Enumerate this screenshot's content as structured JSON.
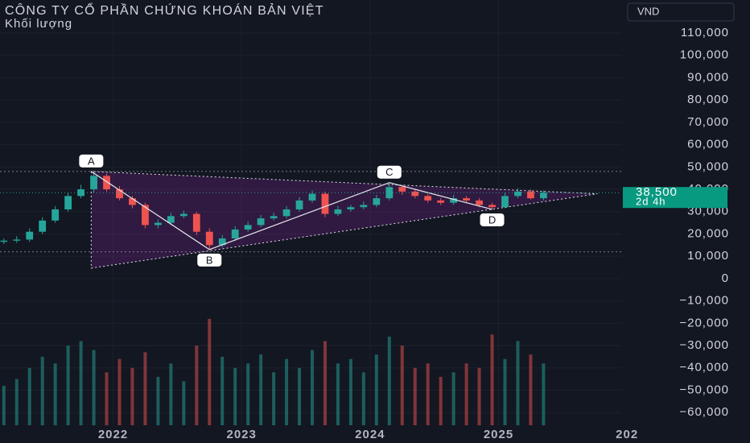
{
  "chart_data": {
    "type": "candlestick",
    "title": "CÔNG TY CỔ PHẦN CHỨNG KHOÁN BẢN VIỆT",
    "subtitle": "Khối lượng",
    "currency": "VND",
    "up_color": "#26a69a",
    "down_color": "#ef5350",
    "grid": true,
    "xlim": [
      2021.12,
      2025.955
    ],
    "xticks": [
      2022,
      2023,
      2024,
      2025,
      {
        "value": 2026,
        "label": "202"
      }
    ],
    "ylim": [
      -65700,
      124800
    ],
    "yticks": [
      {
        "value": 110000,
        "label": "110,000"
      },
      {
        "value": 100000,
        "label": "100,000"
      },
      {
        "value": 90000,
        "label": "90,000"
      },
      {
        "value": 80000,
        "label": "80,000"
      },
      {
        "value": 70000,
        "label": "70,000"
      },
      {
        "value": 60000,
        "label": "60,000"
      },
      {
        "value": 50000,
        "label": "50,000"
      },
      {
        "value": 40000,
        "label": "40,000"
      },
      {
        "value": 30000,
        "label": "30,000"
      },
      {
        "value": 20000,
        "label": "20,000"
      },
      {
        "value": 10000,
        "label": "10,000"
      },
      0,
      {
        "value": -10000,
        "label": "−10,000"
      },
      {
        "value": -20000,
        "label": "−20,000"
      },
      {
        "value": -30000,
        "label": "−30,000"
      },
      {
        "value": -40000,
        "label": "−40,000"
      },
      {
        "value": -50000,
        "label": "−50,000"
      },
      {
        "value": -60000,
        "label": "−60,000"
      }
    ],
    "x": [
      2021.15,
      2021.25,
      2021.35,
      2021.45,
      2021.55,
      2021.65,
      2021.75,
      2021.85,
      2021.95,
      2022.05,
      2022.15,
      2022.25,
      2022.35,
      2022.45,
      2022.55,
      2022.65,
      2022.75,
      2022.85,
      2022.95,
      2023.05,
      2023.15,
      2023.25,
      2023.35,
      2023.45,
      2023.55,
      2023.65,
      2023.75,
      2023.85,
      2023.95,
      2024.05,
      2024.15,
      2024.25,
      2024.35,
      2024.45,
      2024.55,
      2024.65,
      2024.75,
      2024.85,
      2024.95,
      2025.05,
      2025.15,
      2025.25,
      2025.35
    ],
    "open": [
      16500,
      17000,
      17500,
      21000,
      26000,
      31000,
      37000,
      40000,
      46000,
      40000,
      36000,
      33000,
      24000,
      25000,
      28000,
      29000,
      21000,
      15000,
      18000,
      22000,
      24000,
      27000,
      28000,
      31000,
      35000,
      38000,
      29000,
      31000,
      32000,
      33000,
      36000,
      41000,
      39000,
      37000,
      35000,
      34000,
      36000,
      35000,
      33000,
      32000,
      37000,
      39000,
      36000
    ],
    "high": [
      18000,
      19000,
      22500,
      27500,
      32500,
      38500,
      42000,
      48000,
      47000,
      41500,
      37000,
      34000,
      26500,
      29500,
      30500,
      30000,
      22500,
      19500,
      23500,
      25500,
      28500,
      29500,
      32500,
      36500,
      39500,
      39000,
      32500,
      33000,
      34500,
      37500,
      43000,
      42000,
      40000,
      38000,
      36000,
      37500,
      37000,
      36000,
      34000,
      38500,
      40500,
      40000,
      39500
    ],
    "low": [
      15500,
      16000,
      16500,
      20000,
      25000,
      30000,
      36000,
      38500,
      39000,
      35000,
      31500,
      22500,
      22500,
      24000,
      27000,
      19500,
      13000,
      14000,
      17000,
      21000,
      23000,
      26000,
      27000,
      30000,
      34000,
      27500,
      28000,
      30000,
      31000,
      32000,
      35000,
      37500,
      36000,
      34000,
      33000,
      33000,
      34000,
      32000,
      31000,
      31500,
      36000,
      35500,
      35000
    ],
    "close": [
      17000,
      17500,
      21000,
      26000,
      31000,
      37000,
      40000,
      46000,
      40000,
      36000,
      33000,
      24000,
      25000,
      28000,
      29000,
      21000,
      15000,
      18000,
      22000,
      24000,
      27000,
      28000,
      31000,
      35000,
      38000,
      29000,
      31000,
      32000,
      33000,
      36000,
      41000,
      39000,
      37000,
      35000,
      34000,
      36000,
      35000,
      33000,
      32000,
      37000,
      39000,
      36000,
      38500
    ],
    "volume": [
      -48000,
      -45000,
      -40000,
      -35000,
      -38000,
      -30000,
      -28000,
      -32000,
      -42000,
      -36000,
      -40000,
      -33000,
      -44000,
      -38000,
      -46000,
      -30000,
      -18000,
      -35000,
      -40000,
      -38000,
      -34000,
      -42000,
      -36000,
      -40000,
      -32000,
      -28000,
      -38000,
      -36000,
      -42000,
      -34000,
      -26000,
      -30000,
      -40000,
      -38000,
      -44000,
      -42000,
      -38000,
      -40000,
      -25000,
      -36000,
      -28000,
      -34000,
      -38000
    ],
    "triangle": {
      "x": [
        2021.83,
        2021.83,
        2025.77
      ],
      "y": [
        48000,
        4700,
        38000
      ]
    },
    "hlines": [
      48000,
      12000
    ],
    "pattern": [
      {
        "label": "A",
        "x": 2021.83,
        "y": 48000
      },
      {
        "label": "B",
        "x": 2022.75,
        "y": 13000
      },
      {
        "label": "C",
        "x": 2024.15,
        "y": 43000
      },
      {
        "label": "D",
        "x": 2024.95,
        "y": 31000
      }
    ],
    "last_price": {
      "value": 38500,
      "label": "38,500"
    },
    "countdown": "2d 4h"
  }
}
